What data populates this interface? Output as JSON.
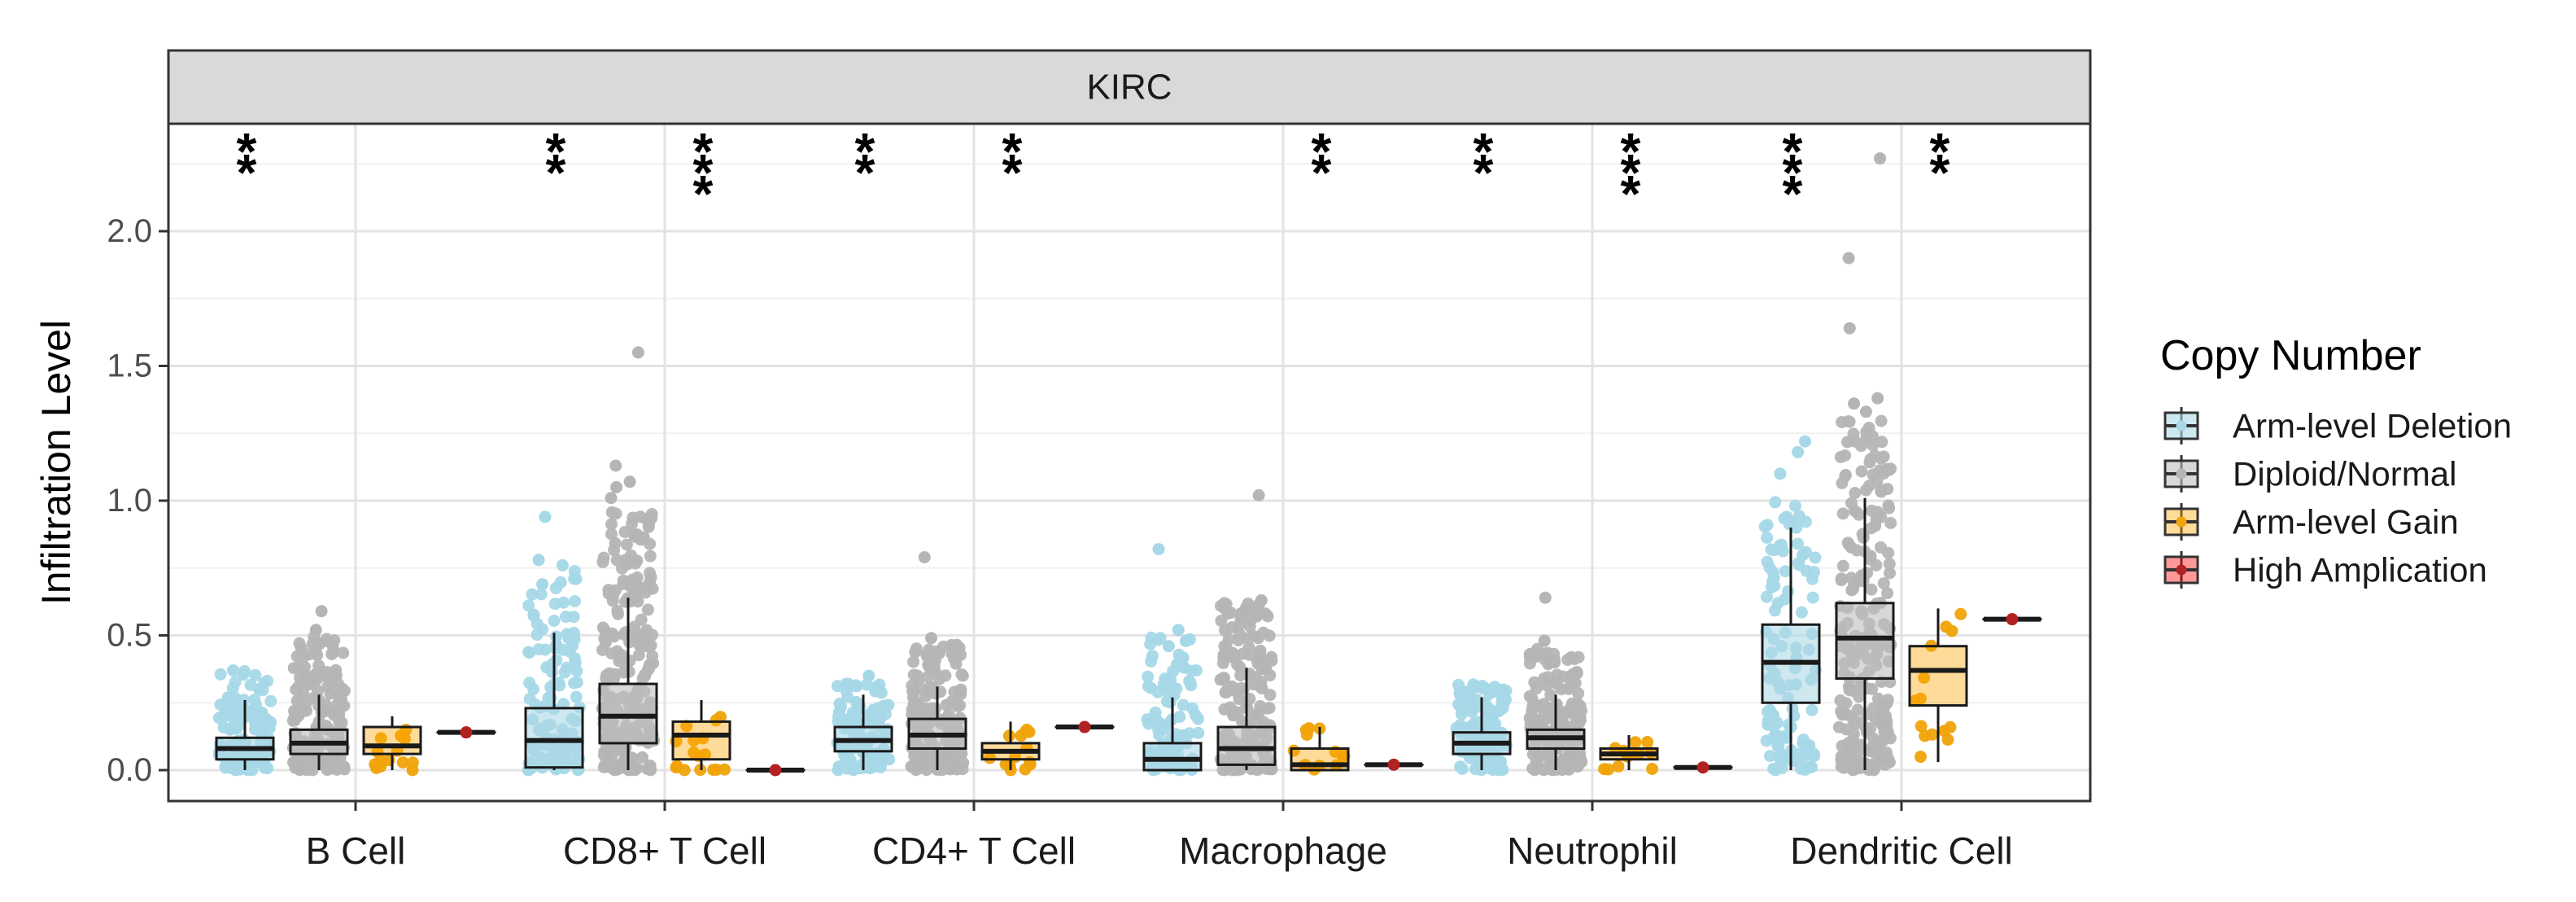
{
  "chart_data": {
    "type": "boxplot",
    "facet_title": "KIRC",
    "ylabel": "Infiltration Level",
    "ylim": [
      -0.05,
      2.35
    ],
    "yticks": [
      0.0,
      0.5,
      1.0,
      1.5,
      2.0
    ],
    "ytick_labels": [
      "0.0",
      "0.5",
      "1.0",
      "1.5",
      "2.0"
    ],
    "categories": [
      "B Cell",
      "CD8+ T Cell",
      "CD4+ T Cell",
      "Macrophage",
      "Neutrophil",
      "Dendritic Cell"
    ],
    "legend": {
      "title": "Copy Number",
      "entries": [
        {
          "name": "Arm-level Deletion",
          "fill": "#add8e6",
          "point": "#a6d8e8",
          "alpha": 0.6
        },
        {
          "name": "Diploid/Normal",
          "fill": "#bebebe",
          "point": "#b5b5b5",
          "alpha": 0.6
        },
        {
          "name": "Arm-level Gain",
          "fill": "#ffa500",
          "point": "#f0a30a",
          "alpha": 0.4
        },
        {
          "name": "High Amplication",
          "fill": "#ff0000",
          "point": "#b22222",
          "alpha": 0.4
        }
      ]
    },
    "boxes": {
      "B Cell": [
        {
          "min": 0.0,
          "q1": 0.04,
          "median": 0.08,
          "q3": 0.12,
          "max": 0.26,
          "n": 110,
          "spread": 0.37,
          "outliers": [
            0.37,
            0.3
          ]
        },
        {
          "min": 0.0,
          "q1": 0.06,
          "median": 0.1,
          "q3": 0.15,
          "max": 0.28,
          "n": 160,
          "spread": 0.5,
          "outliers": [
            0.59,
            0.52,
            0.46
          ]
        },
        {
          "min": 0.0,
          "q1": 0.06,
          "median": 0.09,
          "q3": 0.16,
          "max": 0.2,
          "n": 14,
          "spread": 0.15,
          "outliers": []
        },
        {
          "min": 0.14,
          "q1": 0.14,
          "median": 0.14,
          "q3": 0.14,
          "max": 0.14,
          "n": 1,
          "spread": 0.0,
          "outliers": []
        }
      ],
      "CD8+ T Cell": [
        {
          "min": 0.0,
          "q1": 0.01,
          "median": 0.11,
          "q3": 0.23,
          "max": 0.51,
          "n": 110,
          "spread": 0.75,
          "outliers": [
            0.94,
            0.78,
            0.76,
            0.69
          ]
        },
        {
          "min": 0.0,
          "q1": 0.1,
          "median": 0.2,
          "q3": 0.32,
          "max": 0.64,
          "n": 220,
          "spread": 1.0,
          "outliers": [
            1.55,
            1.13,
            1.07,
            1.05,
            1.01
          ]
        },
        {
          "min": 0.0,
          "q1": 0.04,
          "median": 0.13,
          "q3": 0.18,
          "max": 0.26,
          "n": 16,
          "spread": 0.22,
          "outliers": []
        },
        {
          "min": 0.0,
          "q1": 0.0,
          "median": 0.0,
          "q3": 0.0,
          "max": 0.0,
          "n": 1,
          "spread": 0.0,
          "outliers": []
        }
      ],
      "CD4+ T Cell": [
        {
          "min": 0.0,
          "q1": 0.07,
          "median": 0.11,
          "q3": 0.16,
          "max": 0.28,
          "n": 110,
          "spread": 0.32,
          "outliers": [
            0.35,
            0.32
          ]
        },
        {
          "min": 0.0,
          "q1": 0.08,
          "median": 0.13,
          "q3": 0.19,
          "max": 0.31,
          "n": 170,
          "spread": 0.48,
          "outliers": [
            0.79,
            0.49
          ]
        },
        {
          "min": 0.0,
          "q1": 0.04,
          "median": 0.07,
          "q3": 0.1,
          "max": 0.18,
          "n": 14,
          "spread": 0.17,
          "outliers": []
        },
        {
          "min": 0.16,
          "q1": 0.16,
          "median": 0.16,
          "q3": 0.16,
          "max": 0.16,
          "n": 1,
          "spread": 0.0,
          "outliers": []
        }
      ],
      "Macrophage": [
        {
          "min": 0.0,
          "q1": 0.0,
          "median": 0.04,
          "q3": 0.1,
          "max": 0.27,
          "n": 100,
          "spread": 0.5,
          "outliers": [
            0.82,
            0.52,
            0.46
          ]
        },
        {
          "min": 0.0,
          "q1": 0.02,
          "median": 0.08,
          "q3": 0.16,
          "max": 0.38,
          "n": 170,
          "spread": 0.62,
          "outliers": [
            1.02,
            0.63,
            0.58
          ]
        },
        {
          "min": 0.0,
          "q1": 0.0,
          "median": 0.02,
          "q3": 0.08,
          "max": 0.16,
          "n": 12,
          "spread": 0.16,
          "outliers": []
        },
        {
          "min": 0.02,
          "q1": 0.02,
          "median": 0.02,
          "q3": 0.02,
          "max": 0.02,
          "n": 1,
          "spread": 0.0,
          "outliers": []
        }
      ],
      "Neutrophil": [
        {
          "min": 0.0,
          "q1": 0.06,
          "median": 0.1,
          "q3": 0.14,
          "max": 0.27,
          "n": 110,
          "spread": 0.32,
          "outliers": [
            0.31,
            0.29
          ]
        },
        {
          "min": 0.0,
          "q1": 0.08,
          "median": 0.12,
          "q3": 0.15,
          "max": 0.28,
          "n": 170,
          "spread": 0.45,
          "outliers": [
            0.64,
            0.48,
            0.4
          ]
        },
        {
          "min": 0.0,
          "q1": 0.04,
          "median": 0.06,
          "q3": 0.08,
          "max": 0.13,
          "n": 12,
          "spread": 0.12,
          "outliers": []
        },
        {
          "min": 0.01,
          "q1": 0.01,
          "median": 0.01,
          "q3": 0.01,
          "max": 0.01,
          "n": 1,
          "spread": 0.0,
          "outliers": []
        }
      ],
      "Dendritic Cell": [
        {
          "min": 0.0,
          "q1": 0.25,
          "median": 0.4,
          "q3": 0.54,
          "max": 0.9,
          "n": 110,
          "spread": 1.0,
          "outliers": [
            1.22,
            1.18,
            1.1
          ]
        },
        {
          "min": 0.0,
          "q1": 0.34,
          "median": 0.49,
          "q3": 0.62,
          "max": 1.01,
          "n": 240,
          "spread": 1.3,
          "outliers": [
            2.27,
            1.9,
            1.64,
            1.38,
            1.36,
            1.33
          ]
        },
        {
          "min": 0.03,
          "q1": 0.24,
          "median": 0.37,
          "q3": 0.46,
          "max": 0.6,
          "n": 14,
          "spread": 0.6,
          "outliers": []
        },
        {
          "min": 0.56,
          "q1": 0.56,
          "median": 0.56,
          "q3": 0.56,
          "max": 0.56,
          "n": 1,
          "spread": 0.0,
          "outliers": []
        }
      ]
    },
    "significance": [
      {
        "category": "B Cell",
        "group": 0,
        "label": "**"
      },
      {
        "category": "CD8+ T Cell",
        "group": 0,
        "label": "**"
      },
      {
        "category": "CD8+ T Cell",
        "group": 2,
        "label": "***"
      },
      {
        "category": "CD4+ T Cell",
        "group": 0,
        "label": "**"
      },
      {
        "category": "CD4+ T Cell",
        "group": 2,
        "label": "**"
      },
      {
        "category": "Macrophage",
        "group": 2,
        "label": "**"
      },
      {
        "category": "Neutrophil",
        "group": 0,
        "label": "**"
      },
      {
        "category": "Neutrophil",
        "group": 2,
        "label": "***"
      },
      {
        "category": "Dendritic Cell",
        "group": 0,
        "label": "***"
      },
      {
        "category": "Dendritic Cell",
        "group": 2,
        "label": "**"
      }
    ]
  }
}
